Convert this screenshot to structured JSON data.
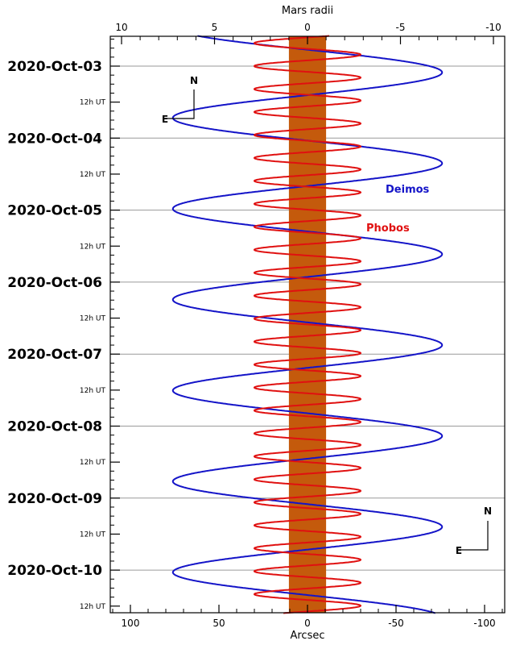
{
  "chart_data": {
    "type": "line",
    "title": "",
    "xlabel": "Arcsec",
    "x2label": "Mars radii",
    "xlim": [
      112,
      -112
    ],
    "x_ticks": [
      100,
      50,
      0,
      -50,
      -100
    ],
    "x2_ticks": [
      10,
      5,
      0,
      -5,
      -10
    ],
    "x_direction": "decreasing to the right",
    "y_axis": "time (UT), increasing downward",
    "ylim_days": [
      2.58,
      10.6
    ],
    "date_labels": [
      "2020-Oct-03",
      "2020-Oct-04",
      "2020-Oct-05",
      "2020-Oct-06",
      "2020-Oct-07",
      "2020-Oct-08",
      "2020-Oct-09",
      "2020-Oct-10"
    ],
    "half_day_label": "12h UT",
    "grid": "horizontal lines at each 00h UT",
    "mars_disk": {
      "x_range": [
        10.5,
        -10.5
      ],
      "color": "#c45a0c"
    },
    "series": [
      {
        "name": "Deimos",
        "color": "#1414c8",
        "amplitude": 76,
        "period_days": 1.2624,
        "phase_deg": 155
      },
      {
        "name": "Phobos",
        "color": "#e01010",
        "amplitude": 30,
        "period_days": 0.31891,
        "phase_deg": 0
      }
    ],
    "compass_top": {
      "north": "N",
      "east": "E"
    },
    "compass_bottom": {
      "north": "N",
      "east": "E"
    }
  }
}
